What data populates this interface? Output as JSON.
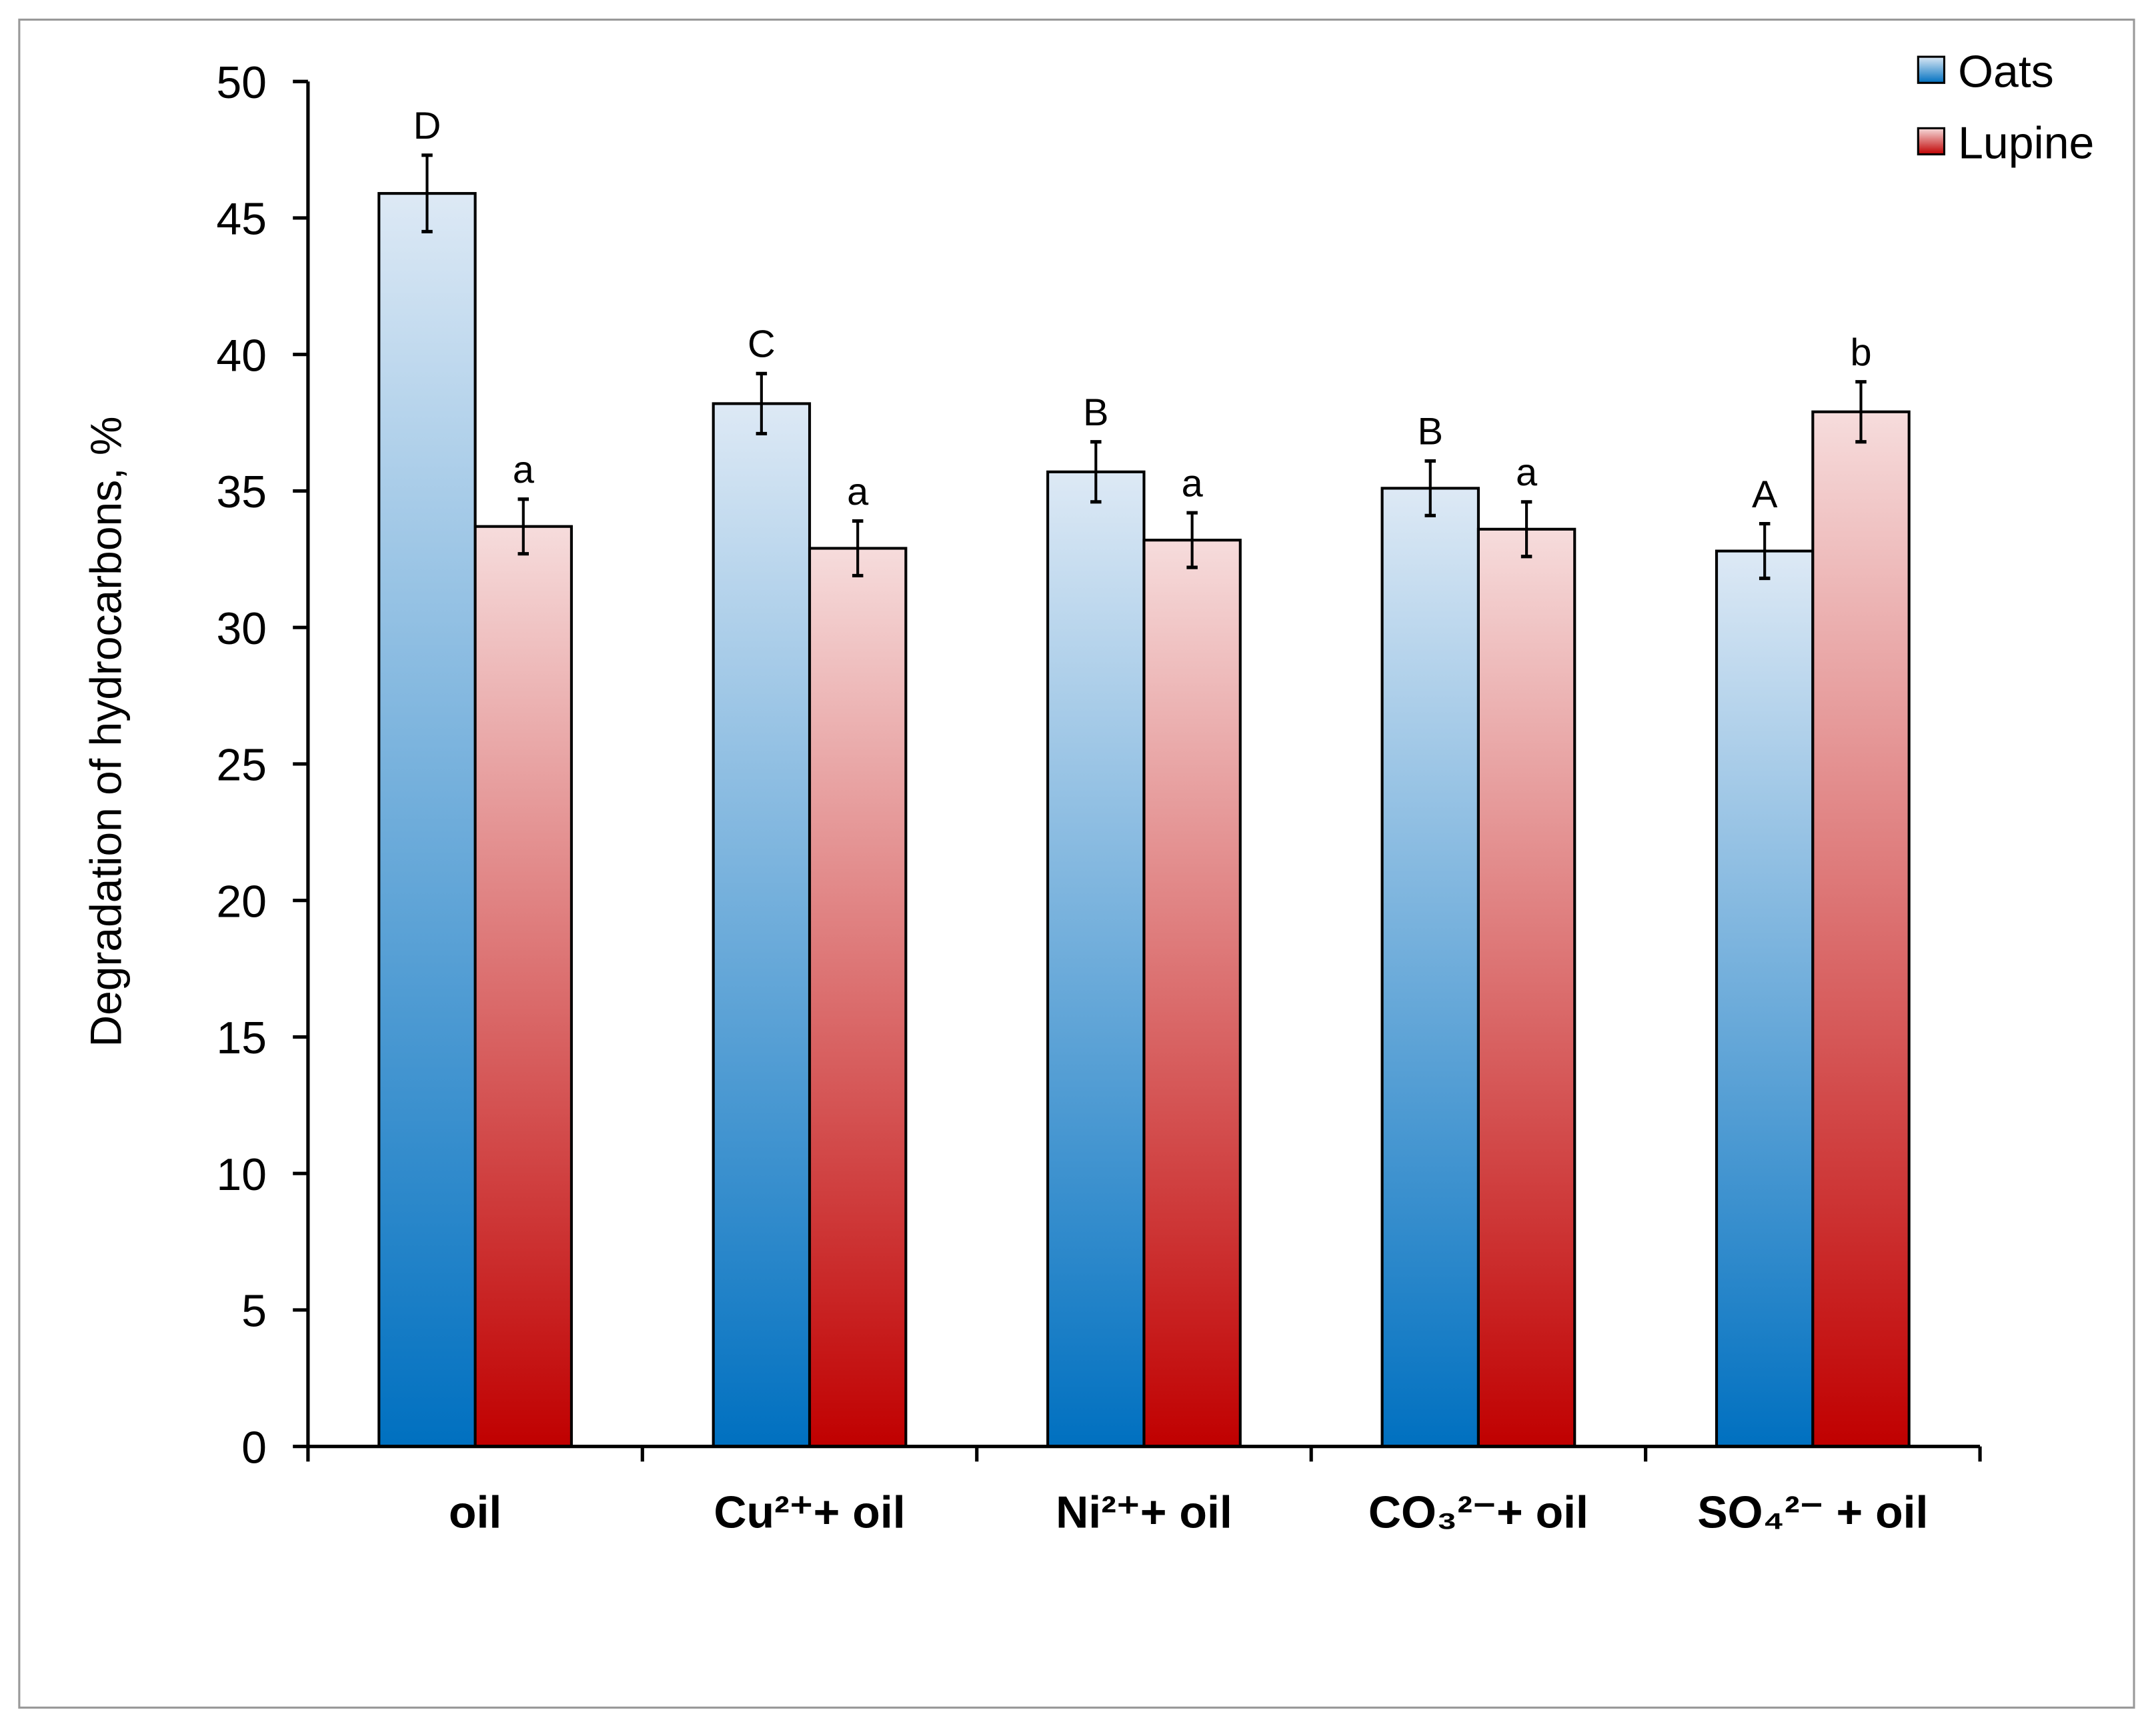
{
  "chart_data": {
    "type": "bar",
    "title": "",
    "xlabel": "",
    "ylabel": "Degradation of hydrocarbons, %",
    "ylim": [
      0,
      50
    ],
    "yticks": [
      0,
      5,
      10,
      15,
      20,
      25,
      30,
      35,
      40,
      45,
      50
    ],
    "grid": false,
    "legend_position": "top-right",
    "categories": [
      "oil",
      "Cu²⁺+ oil",
      "Ni²⁺+ oil",
      "CO₃²⁻+ oil",
      "SO₄²⁻ + oil"
    ],
    "series": [
      {
        "name": "Oats",
        "color": "#0070c0",
        "values": [
          45.9,
          38.2,
          35.7,
          35.1,
          32.8
        ],
        "errors": [
          1.4,
          1.1,
          1.1,
          1.0,
          1.0
        ],
        "letters": [
          "D",
          "C",
          "B",
          "B",
          "A"
        ]
      },
      {
        "name": "Lupine",
        "color": "#c00000",
        "values": [
          33.7,
          32.9,
          33.2,
          33.6,
          37.9
        ],
        "errors": [
          1.0,
          1.0,
          1.0,
          1.0,
          1.1
        ],
        "letters": [
          "a",
          "a",
          "a",
          "a",
          "b"
        ]
      }
    ]
  }
}
